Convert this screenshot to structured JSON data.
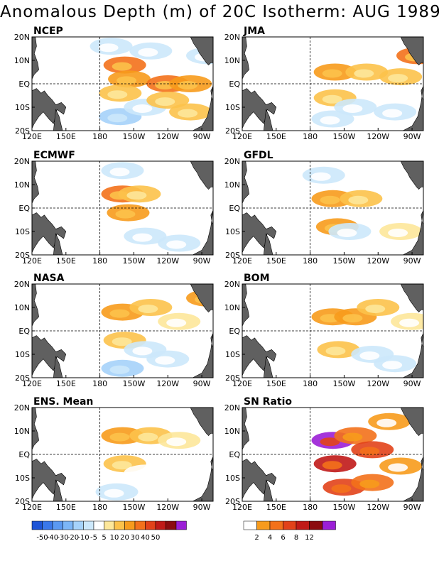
{
  "title": "Anomalous Depth (m) of 20C Isotherm: AUG 1989",
  "colors": {
    "land": "#606060",
    "anomaly_scale": [
      "#1e55d6",
      "#3a78ea",
      "#5a99f2",
      "#7cb6f7",
      "#a5d2fa",
      "#cce8fb",
      "#ffffff",
      "#fde79a",
      "#fcc24a",
      "#f79b1c",
      "#f3711b",
      "#e2421a",
      "#c01a18",
      "#8b0c10",
      "#9b1fd6"
    ],
    "sn_scale": [
      "#ffffff",
      "#f79b1c",
      "#f3711b",
      "#e2421a",
      "#c01a18",
      "#8b0c10",
      "#9b1fd6"
    ]
  },
  "chart_data": [
    {
      "type": "heatmap",
      "title": "NCEP",
      "xticks": [
        "120E",
        "150E",
        "180",
        "150W",
        "120W",
        "90W"
      ],
      "yticks": [
        "20N",
        "10N",
        "EQ",
        "10S",
        "20S"
      ],
      "x_range": [
        "120E",
        "80W"
      ],
      "y_range": [
        "20S",
        "20N"
      ],
      "features": [
        {
          "lon": -158,
          "lat": 8,
          "value": 30
        },
        {
          "lon": -154,
          "lat": 2,
          "value": 20
        },
        {
          "lon": -162,
          "lat": -4,
          "value": 10
        },
        {
          "lon": -120,
          "lat": 0,
          "value": 30
        },
        {
          "lon": -100,
          "lat": 0,
          "value": 20
        },
        {
          "lon": -135,
          "lat": 14,
          "value": -10
        },
        {
          "lon": -162,
          "lat": -14,
          "value": -20
        },
        {
          "lon": -140,
          "lat": -10,
          "value": -10
        },
        {
          "lon": -120,
          "lat": -7,
          "value": 10
        },
        {
          "lon": -100,
          "lat": -12,
          "value": 10
        },
        {
          "lon": -85,
          "lat": 12,
          "value": -10
        },
        {
          "lon": -170,
          "lat": 16,
          "value": -10
        }
      ]
    },
    {
      "type": "heatmap",
      "title": "JMA",
      "xticks": [
        "120E",
        "150E",
        "180",
        "150W",
        "120W",
        "90W"
      ],
      "yticks": [
        "20N",
        "10N",
        "EQ",
        "10S",
        "20S"
      ],
      "x_range": [
        "120E",
        "80W"
      ],
      "y_range": [
        "20S",
        "20N"
      ],
      "features": [
        {
          "lon": -158,
          "lat": 5,
          "value": 20
        },
        {
          "lon": -158,
          "lat": -6,
          "value": 10
        },
        {
          "lon": -130,
          "lat": 5,
          "value": 10
        },
        {
          "lon": -100,
          "lat": 3,
          "value": 10
        },
        {
          "lon": -85,
          "lat": 12,
          "value": 30
        },
        {
          "lon": -140,
          "lat": -10,
          "value": -10
        },
        {
          "lon": -105,
          "lat": -12,
          "value": -10
        },
        {
          "lon": -160,
          "lat": -15,
          "value": -10
        }
      ]
    },
    {
      "type": "heatmap",
      "title": "ECMWF",
      "xticks": [
        "120E",
        "150E",
        "180",
        "150W",
        "120W",
        "90W"
      ],
      "yticks": [
        "20N",
        "10N",
        "EQ",
        "10S",
        "20S"
      ],
      "x_range": [
        "120E",
        "80W"
      ],
      "y_range": [
        "20S",
        "20N"
      ],
      "features": [
        {
          "lon": -160,
          "lat": 6,
          "value": 30
        },
        {
          "lon": -155,
          "lat": -2,
          "value": 20
        },
        {
          "lon": -145,
          "lat": 6,
          "value": 10
        },
        {
          "lon": -160,
          "lat": 16,
          "value": -10
        },
        {
          "lon": -140,
          "lat": -12,
          "value": -10
        },
        {
          "lon": -110,
          "lat": -15,
          "value": -10
        },
        {
          "lon": -120,
          "lat": 12,
          "value": -5
        }
      ]
    },
    {
      "type": "heatmap",
      "title": "GFDL",
      "xticks": [
        "120E",
        "150E",
        "180",
        "150W",
        "120W",
        "90W"
      ],
      "yticks": [
        "20N",
        "10N",
        "EQ",
        "10S",
        "20S"
      ],
      "x_range": [
        "120E",
        "80W"
      ],
      "y_range": [
        "20S",
        "20N"
      ],
      "features": [
        {
          "lon": -160,
          "lat": 4,
          "value": 20
        },
        {
          "lon": -156,
          "lat": -8,
          "value": 20
        },
        {
          "lon": -135,
          "lat": 4,
          "value": 10
        },
        {
          "lon": -145,
          "lat": -10,
          "value": -10
        },
        {
          "lon": -110,
          "lat": 12,
          "value": -5
        },
        {
          "lon": -100,
          "lat": -10,
          "value": 5
        },
        {
          "lon": -168,
          "lat": 14,
          "value": -10
        }
      ]
    },
    {
      "type": "heatmap",
      "title": "NASA",
      "xticks": [
        "120E",
        "150E",
        "180",
        "150W",
        "120W",
        "90W"
      ],
      "yticks": [
        "20N",
        "10N",
        "EQ",
        "10S",
        "20S"
      ],
      "x_range": [
        "120E",
        "80W"
      ],
      "y_range": [
        "20S",
        "20N"
      ],
      "features": [
        {
          "lon": -160,
          "lat": 8,
          "value": 20
        },
        {
          "lon": -158,
          "lat": -4,
          "value": 10
        },
        {
          "lon": -135,
          "lat": 10,
          "value": 10
        },
        {
          "lon": -110,
          "lat": 4,
          "value": 5
        },
        {
          "lon": -140,
          "lat": -8,
          "value": -10
        },
        {
          "lon": -160,
          "lat": -16,
          "value": -20
        },
        {
          "lon": -120,
          "lat": -12,
          "value": -10
        },
        {
          "lon": -85,
          "lat": 14,
          "value": 20
        }
      ]
    },
    {
      "type": "heatmap",
      "title": "BOM",
      "xticks": [
        "120E",
        "150E",
        "180",
        "150W",
        "120W",
        "90W"
      ],
      "yticks": [
        "20N",
        "10N",
        "EQ",
        "10S",
        "20S"
      ],
      "x_range": [
        "120E",
        "80W"
      ],
      "y_range": [
        "20S",
        "20N"
      ],
      "features": [
        {
          "lon": -160,
          "lat": 6,
          "value": 20
        },
        {
          "lon": -140,
          "lat": 6,
          "value": 20
        },
        {
          "lon": -155,
          "lat": -8,
          "value": 10
        },
        {
          "lon": -120,
          "lat": 10,
          "value": 10
        },
        {
          "lon": -125,
          "lat": -10,
          "value": -10
        },
        {
          "lon": -105,
          "lat": -14,
          "value": -10
        },
        {
          "lon": -90,
          "lat": 4,
          "value": 5
        }
      ]
    },
    {
      "type": "heatmap",
      "title": "ENS. Mean",
      "xticks": [
        "120E",
        "150E",
        "180",
        "150W",
        "120W",
        "90W"
      ],
      "yticks": [
        "20N",
        "10N",
        "EQ",
        "10S",
        "20S"
      ],
      "x_range": [
        "120E",
        "80W"
      ],
      "y_range": [
        "20S",
        "20N"
      ],
      "features": [
        {
          "lon": -160,
          "lat": 8,
          "value": 20
        },
        {
          "lon": -158,
          "lat": -4,
          "value": 10
        },
        {
          "lon": -135,
          "lat": 8,
          "value": 10
        },
        {
          "lon": -110,
          "lat": 6,
          "value": 5
        },
        {
          "lon": -140,
          "lat": -8,
          "value": -5
        },
        {
          "lon": -115,
          "lat": -10,
          "value": -5
        },
        {
          "lon": -165,
          "lat": -16,
          "value": -10
        }
      ]
    },
    {
      "type": "heatmap",
      "title": "SN Ratio",
      "xticks": [
        "120E",
        "150E",
        "180",
        "150W",
        "120W",
        "90W"
      ],
      "yticks": [
        "20N",
        "10N",
        "EQ",
        "10S",
        "20S"
      ],
      "x_range": [
        "120E",
        "80W"
      ],
      "y_range": [
        "20S",
        "20N"
      ],
      "features": [
        {
          "lon": -160,
          "lat": 6,
          "value": 12
        },
        {
          "lon": -158,
          "lat": -4,
          "value": 8
        },
        {
          "lon": -150,
          "lat": -14,
          "value": 6
        },
        {
          "lon": -140,
          "lat": 8,
          "value": 4
        },
        {
          "lon": -125,
          "lat": 2,
          "value": 6
        },
        {
          "lon": -125,
          "lat": -12,
          "value": 4
        },
        {
          "lon": -110,
          "lat": 14,
          "value": 2
        },
        {
          "lon": -100,
          "lat": -5,
          "value": 2
        }
      ]
    },
    {
      "type": "colorbar",
      "title": "",
      "labels": [
        "-50",
        "-40",
        "-30",
        "-20",
        "-10",
        "-5",
        "5",
        "10",
        "20",
        "30",
        "40",
        "50"
      ]
    },
    {
      "type": "colorbar",
      "title": "",
      "labels": [
        "2",
        "4",
        "6",
        "8",
        "12"
      ]
    }
  ]
}
